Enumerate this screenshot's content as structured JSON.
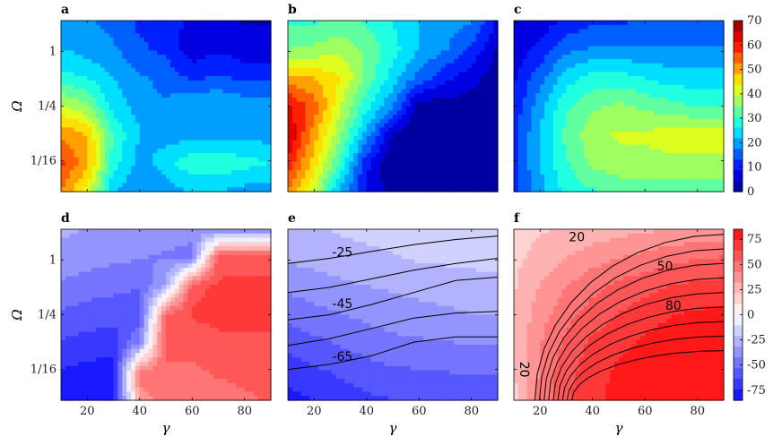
{
  "chart_data": {
    "type": "heatmap",
    "x_values": [
      10,
      20,
      30,
      40,
      50,
      60,
      70,
      80,
      90
    ],
    "xlim": [
      10,
      90
    ],
    "x_ticks": [
      "20",
      "40",
      "60",
      "80"
    ],
    "x_tick_values": [
      20,
      40,
      60,
      80
    ],
    "xlabel": "γ",
    "ylabel": "Ω",
    "y_scale": "log2",
    "y_ticks": [
      "1",
      "1/4",
      "1/16"
    ],
    "y_rows": 7,
    "panels": [
      {
        "label": "a",
        "colormap": "jet",
        "clim": [
          0,
          70
        ],
        "z": [
          [
            18,
            18,
            16,
            12,
            10,
            8,
            6,
            4,
            4
          ],
          [
            22,
            20,
            18,
            14,
            12,
            6,
            8,
            6,
            6
          ],
          [
            28,
            26,
            22,
            18,
            16,
            12,
            14,
            12,
            12
          ],
          [
            40,
            36,
            24,
            20,
            18,
            22,
            22,
            20,
            20
          ],
          [
            52,
            48,
            30,
            22,
            20,
            20,
            20,
            20,
            20
          ],
          [
            58,
            50,
            28,
            20,
            24,
            30,
            30,
            28,
            26
          ],
          [
            52,
            42,
            22,
            18,
            20,
            22,
            22,
            20,
            20
          ]
        ]
      },
      {
        "label": "b",
        "colormap": "jet",
        "clim": [
          0,
          70
        ],
        "z": [
          [
            30,
            30,
            32,
            30,
            26,
            22,
            20,
            18,
            8
          ],
          [
            35,
            36,
            38,
            34,
            28,
            22,
            18,
            12,
            4
          ],
          [
            50,
            48,
            44,
            34,
            24,
            16,
            10,
            6,
            2
          ],
          [
            62,
            55,
            40,
            28,
            18,
            2,
            2,
            2,
            2
          ],
          [
            66,
            50,
            36,
            20,
            4,
            0,
            0,
            0,
            0
          ],
          [
            60,
            46,
            30,
            10,
            0,
            0,
            0,
            0,
            0
          ],
          [
            52,
            40,
            20,
            8,
            2,
            2,
            2,
            2,
            2
          ]
        ]
      },
      {
        "label": "c",
        "colormap": "jet",
        "clim": [
          0,
          70
        ],
        "cbar_ticks": [
          "0",
          "10",
          "20",
          "30",
          "40",
          "50",
          "60",
          "70"
        ],
        "z": [
          [
            4,
            6,
            10,
            12,
            12,
            14,
            14,
            14,
            14
          ],
          [
            6,
            10,
            16,
            18,
            18,
            18,
            18,
            18,
            18
          ],
          [
            8,
            16,
            24,
            28,
            28,
            26,
            24,
            24,
            24
          ],
          [
            10,
            20,
            30,
            34,
            36,
            34,
            32,
            30,
            30
          ],
          [
            12,
            22,
            32,
            38,
            40,
            40,
            42,
            42,
            42
          ],
          [
            12,
            22,
            30,
            36,
            38,
            38,
            38,
            38,
            38
          ],
          [
            12,
            20,
            28,
            30,
            32,
            32,
            32,
            32,
            32
          ]
        ]
      },
      {
        "label": "d",
        "colormap": "bwr",
        "clim": [
          -85,
          85
        ],
        "z": [
          [
            -30,
            -32,
            -34,
            -36,
            -38,
            -40,
            -40,
            -40,
            -40
          ],
          [
            -35,
            -38,
            -40,
            -42,
            -44,
            -45,
            60,
            62,
            62
          ],
          [
            -45,
            -48,
            -50,
            -52,
            -30,
            60,
            65,
            65,
            65
          ],
          [
            -55,
            -58,
            -60,
            -62,
            55,
            65,
            70,
            70,
            70
          ],
          [
            -65,
            -68,
            -70,
            -40,
            60,
            55,
            58,
            60,
            60
          ],
          [
            -75,
            -78,
            -80,
            45,
            50,
            52,
            54,
            55,
            56
          ],
          [
            -80,
            -82,
            -84,
            40,
            45,
            48,
            50,
            52,
            54
          ]
        ]
      },
      {
        "label": "e",
        "colormap": "bwr",
        "clim": [
          -85,
          85
        ],
        "contour_labels": [
          "-25",
          "-45",
          "-65"
        ],
        "z": [
          [
            -24,
            -22,
            -20,
            -18,
            -17,
            -16,
            -15,
            -14,
            -13
          ],
          [
            -30,
            -28,
            -26,
            -24,
            -22,
            -20,
            -19,
            -18,
            -17
          ],
          [
            -40,
            -37,
            -34,
            -32,
            -30,
            -28,
            -27,
            -26,
            -25
          ],
          [
            -50,
            -46,
            -43,
            -40,
            -38,
            -36,
            -34,
            -32,
            -31
          ],
          [
            -60,
            -56,
            -52,
            -48,
            -45,
            -44,
            -43,
            -42,
            -42
          ],
          [
            -70,
            -66,
            -62,
            -58,
            -55,
            -54,
            -53,
            -52,
            -52
          ],
          [
            -78,
            -74,
            -70,
            -66,
            -64,
            -62,
            -62,
            -62,
            -62
          ]
        ]
      },
      {
        "label": "f",
        "colormap": "bwr",
        "clim": [
          -85,
          85
        ],
        "cbar_ticks": [
          "-75",
          "-50",
          "-25",
          "0",
          "25",
          "50",
          "75"
        ],
        "contour_labels": [
          "20",
          "50",
          "80",
          "20"
        ],
        "z": [
          [
            15,
            20,
            22,
            25,
            28,
            30,
            32,
            34,
            35
          ],
          [
            18,
            26,
            32,
            38,
            42,
            46,
            50,
            52,
            54
          ],
          [
            20,
            32,
            42,
            50,
            56,
            60,
            64,
            66,
            68
          ],
          [
            22,
            38,
            50,
            58,
            64,
            70,
            74,
            76,
            78
          ],
          [
            22,
            42,
            56,
            66,
            72,
            76,
            80,
            82,
            82
          ],
          [
            20,
            44,
            60,
            70,
            76,
            80,
            82,
            84,
            84
          ],
          [
            18,
            46,
            62,
            72,
            78,
            82,
            84,
            85,
            85
          ]
        ]
      }
    ]
  }
}
